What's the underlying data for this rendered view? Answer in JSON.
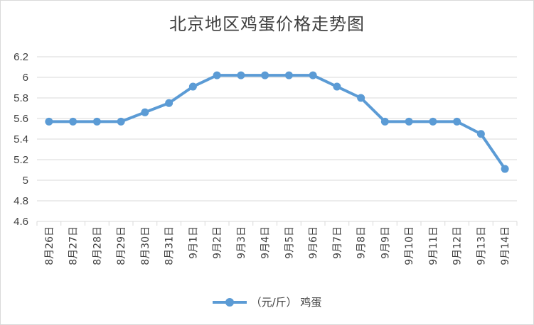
{
  "chart_data": {
    "type": "line",
    "title": "北京地区鸡蛋价格走势图",
    "categories": [
      "8月26日",
      "8月27日",
      "8月28日",
      "8月29日",
      "8月30日",
      "8月31日",
      "9月1日",
      "9月2日",
      "9月3日",
      "9月4日",
      "9月5日",
      "9月6日",
      "9月7日",
      "9月8日",
      "9月9日",
      "9月10日",
      "9月11日",
      "9月12日",
      "9月13日",
      "9月14日"
    ],
    "series": [
      {
        "name": "（元/斤） 鸡蛋",
        "color": "#5b9bd5",
        "values": [
          5.57,
          5.57,
          5.57,
          5.57,
          5.66,
          5.75,
          5.91,
          6.02,
          6.02,
          6.02,
          6.02,
          6.02,
          5.91,
          5.8,
          5.57,
          5.57,
          5.57,
          5.57,
          5.45,
          5.11
        ]
      }
    ],
    "yticks": [
      "4.6",
      "4.8",
      "5",
      "5.2",
      "5.4",
      "5.6",
      "5.8",
      "6",
      "6.2"
    ],
    "ylim": [
      4.6,
      6.2
    ],
    "grid": true,
    "legend_position": "bottom"
  }
}
